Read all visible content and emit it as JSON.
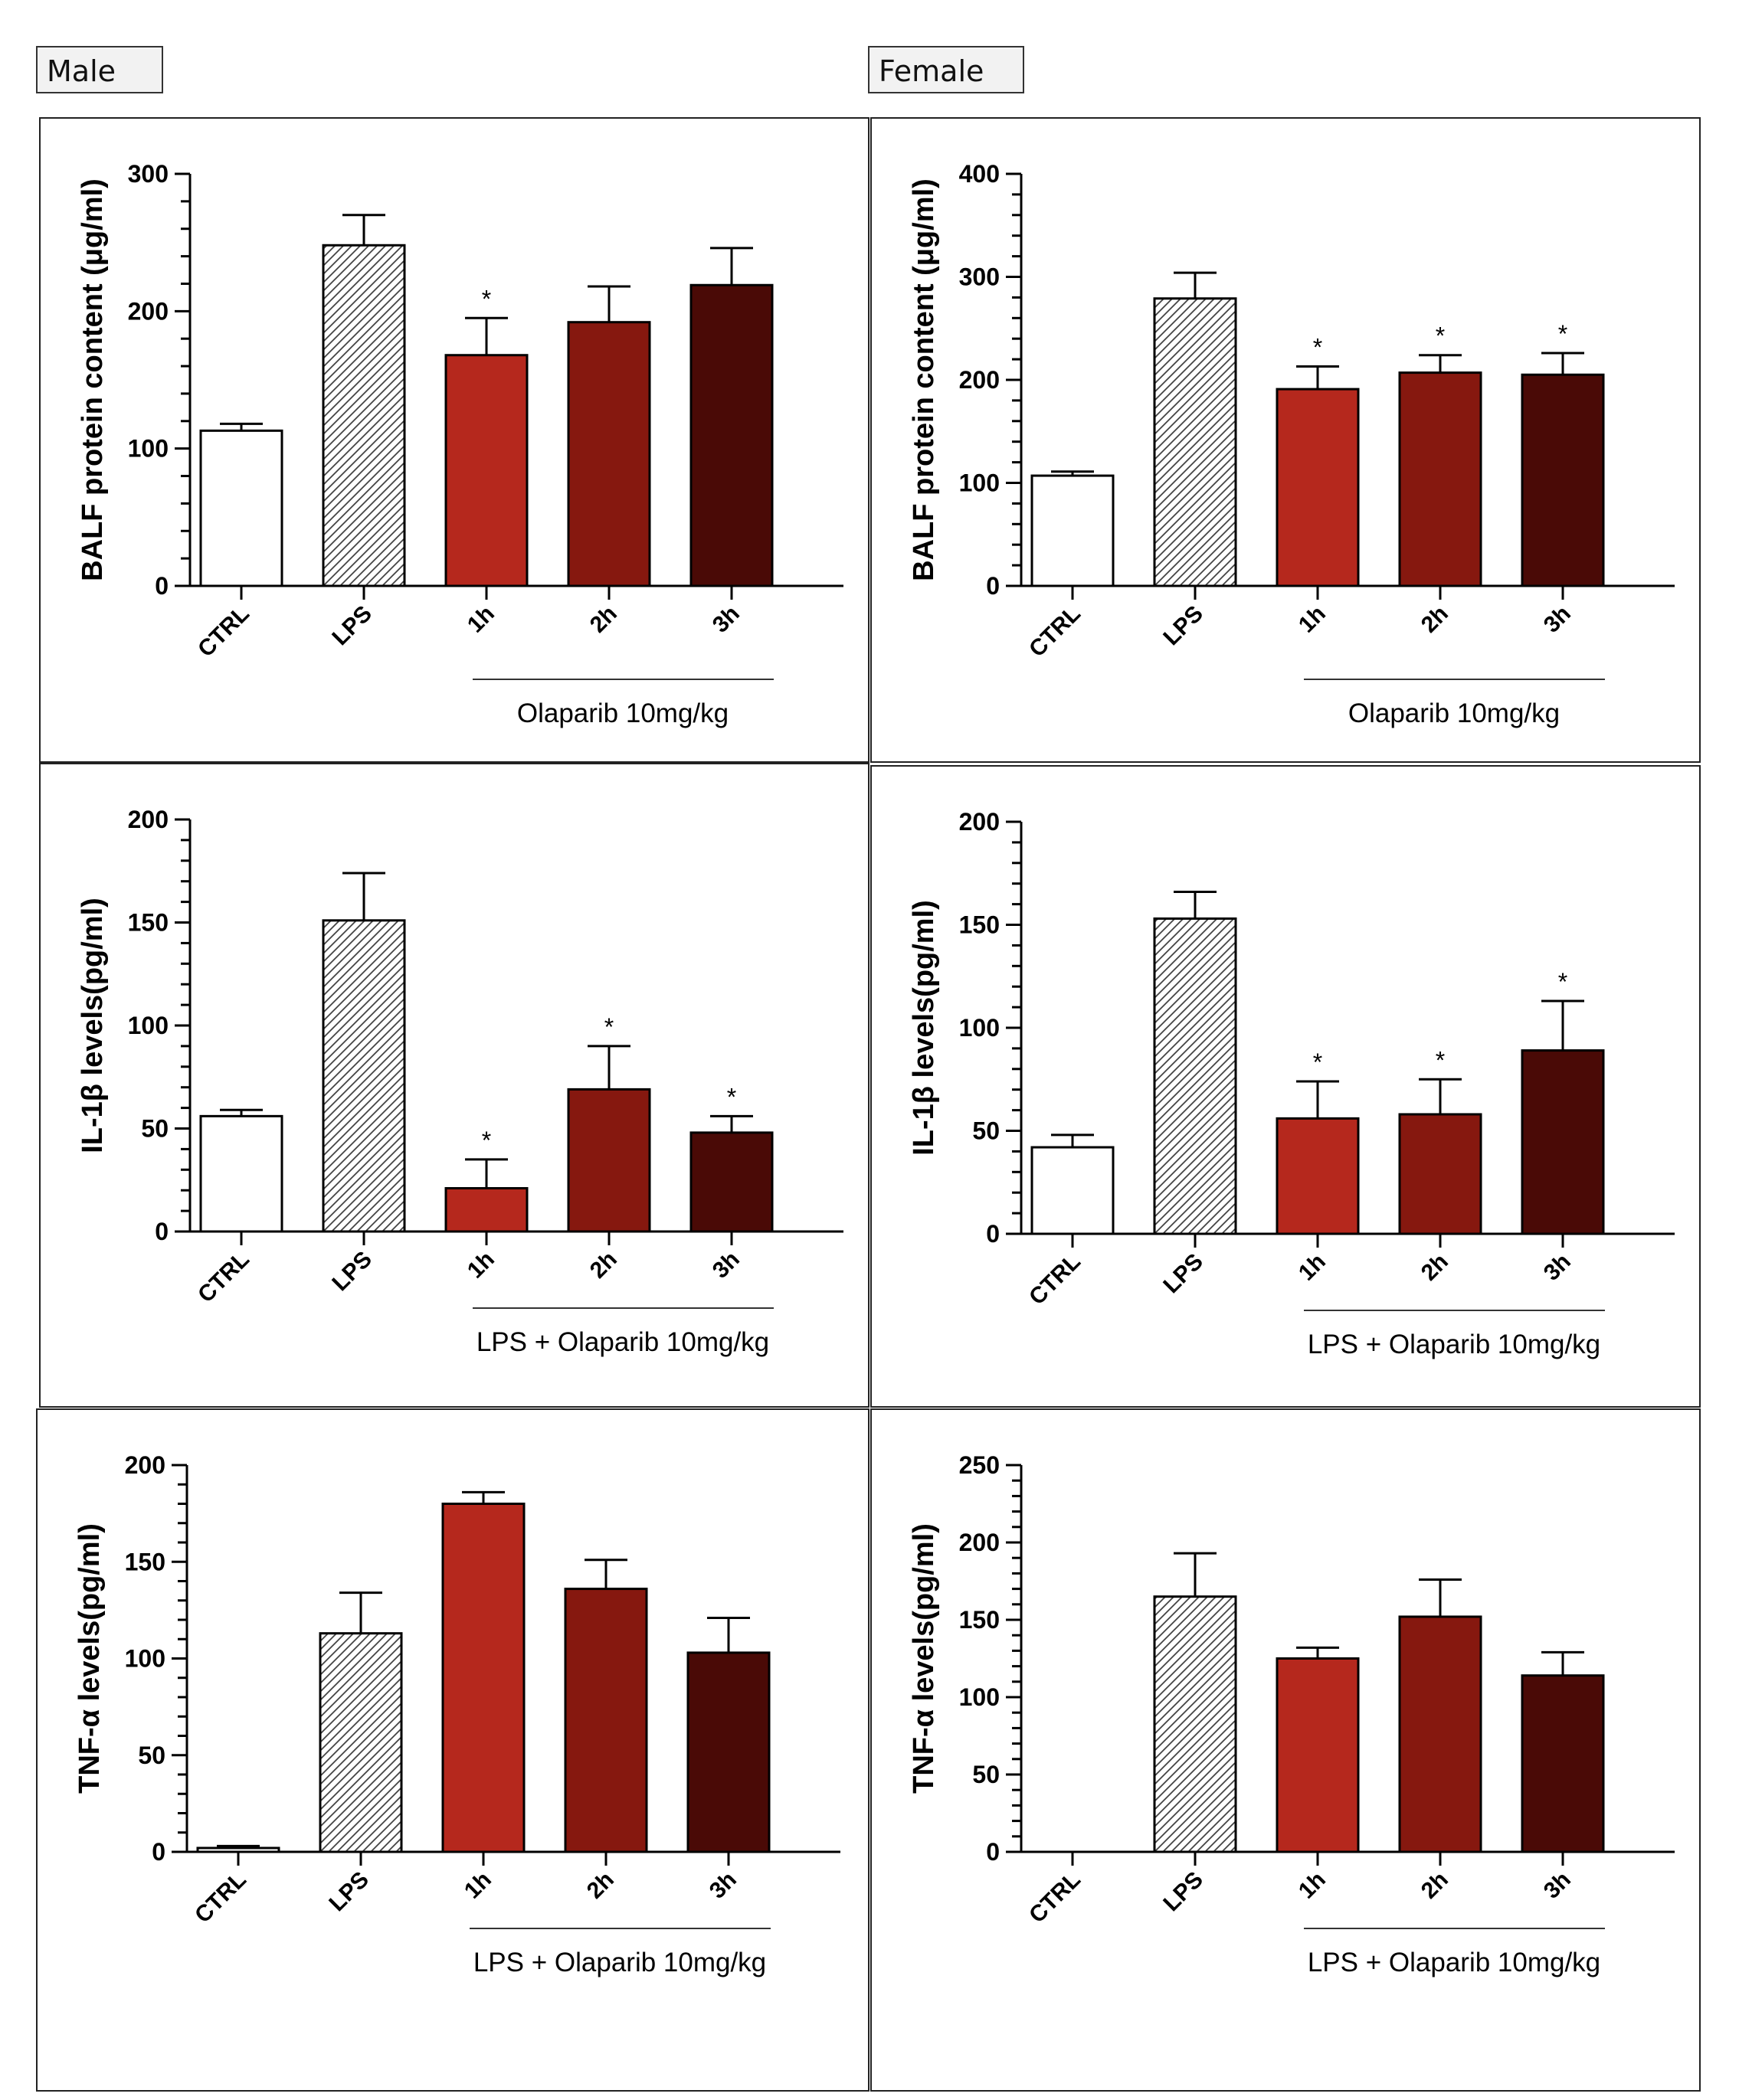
{
  "labels": {
    "male": "Male",
    "female": "Female"
  },
  "colors": {
    "ctrl": "#ffffff",
    "lps_hatch": "#444444",
    "h1": "#b5281d",
    "h2": "#86180f",
    "h3": "#4a0a06",
    "axis": "#000000"
  },
  "chart_data": [
    {
      "type": "bar",
      "panel": "male-balf",
      "ylabel": "BALF protein content (μg/ml)",
      "ylim": [
        0,
        300
      ],
      "yticks": [
        0,
        100,
        200,
        300
      ],
      "minor_step": 20,
      "categories": [
        "CTRL",
        "LPS",
        "1h",
        "2h",
        "3h"
      ],
      "values": [
        113,
        248,
        168,
        192,
        219
      ],
      "errors": [
        5,
        22,
        27,
        26,
        27
      ],
      "significance": [
        "",
        "",
        "*",
        "",
        ""
      ],
      "group_label": "Olaparib 10mg/kg"
    },
    {
      "type": "bar",
      "panel": "female-balf",
      "ylabel": "BALF protein content (μg/ml)",
      "ylim": [
        0,
        400
      ],
      "yticks": [
        0,
        100,
        200,
        300,
        400
      ],
      "minor_step": 20,
      "categories": [
        "CTRL",
        "LPS",
        "1h",
        "2h",
        "3h"
      ],
      "values": [
        107,
        279,
        191,
        207,
        205
      ],
      "errors": [
        4,
        25,
        22,
        17,
        21
      ],
      "significance": [
        "",
        "",
        "*",
        "*",
        "*"
      ],
      "group_label": "Olaparib 10mg/kg"
    },
    {
      "type": "bar",
      "panel": "male-il1b",
      "ylabel": "IL-1β levels(pg/ml)",
      "ylim": [
        0,
        200
      ],
      "yticks": [
        0,
        50,
        100,
        150,
        200
      ],
      "minor_step": 10,
      "categories": [
        "CTRL",
        "LPS",
        "1h",
        "2h",
        "3h"
      ],
      "values": [
        56,
        151,
        21,
        69,
        48
      ],
      "errors": [
        3,
        23,
        14,
        21,
        8
      ],
      "significance": [
        "",
        "",
        "*",
        "*",
        "*"
      ],
      "group_label": "LPS + Olaparib 10mg/kg"
    },
    {
      "type": "bar",
      "panel": "female-il1b",
      "ylabel": "IL-1β levels(pg/ml)",
      "ylim": [
        0,
        200
      ],
      "yticks": [
        0,
        50,
        100,
        150,
        200
      ],
      "minor_step": 10,
      "categories": [
        "CTRL",
        "LPS",
        "1h",
        "2h",
        "3h"
      ],
      "values": [
        42,
        153,
        56,
        58,
        89
      ],
      "errors": [
        6,
        13,
        18,
        17,
        24
      ],
      "significance": [
        "",
        "",
        "*",
        "*",
        "*"
      ],
      "group_label": "LPS + Olaparib 10mg/kg"
    },
    {
      "type": "bar",
      "panel": "male-tnfa",
      "ylabel": "TNF-α levels(pg/ml)",
      "ylim": [
        0,
        200
      ],
      "yticks": [
        0,
        50,
        100,
        150,
        200
      ],
      "minor_step": 10,
      "categories": [
        "CTRL",
        "LPS",
        "1h",
        "2h",
        "3h"
      ],
      "values": [
        2,
        113,
        180,
        136,
        103
      ],
      "errors": [
        1,
        21,
        6,
        15,
        18
      ],
      "significance": [
        "",
        "",
        "",
        "",
        ""
      ],
      "group_label": "LPS + Olaparib 10mg/kg"
    },
    {
      "type": "bar",
      "panel": "female-tnfa",
      "ylabel": "TNF-α levels(pg/ml)",
      "ylim": [
        0,
        250
      ],
      "yticks": [
        0,
        50,
        100,
        150,
        200,
        250
      ],
      "minor_step": 10,
      "categories": [
        "CTRL",
        "LPS",
        "1h",
        "2h",
        "3h"
      ],
      "values": [
        0,
        165,
        125,
        152,
        114
      ],
      "errors": [
        0,
        28,
        7,
        24,
        15
      ],
      "significance": [
        "",
        "",
        "",
        "",
        ""
      ],
      "group_label": "LPS + Olaparib 10mg/kg"
    }
  ]
}
